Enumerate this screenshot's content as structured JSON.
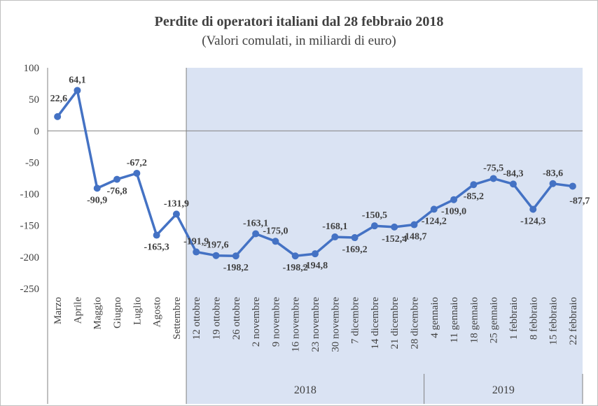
{
  "chart_data": {
    "type": "line",
    "title": "Perdite di operatori italiani  dal 28 febbraio 2018",
    "subtitle": "(Valori comulati, in miliardi di euro)",
    "ylim": [
      -250,
      100
    ],
    "yticks": [
      100,
      50,
      0,
      -50,
      -100,
      -150,
      -200,
      -250
    ],
    "grid": false,
    "line_color": "#4472c4",
    "shade_color": "#dae3f3",
    "categories": [
      "Marzo",
      "Aprile",
      "Maggio",
      "Giugno",
      "Luglio",
      "Agosto",
      "Settembre",
      "12 ottobre",
      "19 ottobre",
      "26 ottobre",
      "2 novembre",
      "9 novembre",
      "16 novembre",
      "23 novembre",
      "30 novembre",
      "7 dicembre",
      "14 dicembre",
      "21 dicembre",
      "28 dicembre",
      "4 gennaio",
      "11 gennaio",
      "18 gennaio",
      "25 gennaio",
      "1 febbraio",
      "8 febbraio",
      "15 febbraio",
      "22 febbraio"
    ],
    "values": [
      22.6,
      64.1,
      -90.9,
      -76.8,
      -67.2,
      -165.3,
      -131.9,
      -191.9,
      -197.6,
      -198.2,
      -163.1,
      -175.0,
      -198.2,
      -194.8,
      -168.1,
      -169.2,
      -150.5,
      -152.4,
      -148.7,
      -124.2,
      -109.0,
      -85.2,
      -75.5,
      -84.3,
      -124.3,
      -83.6,
      -87.7
    ],
    "labels": [
      "22,6",
      "64,1",
      "-90,9",
      "-76,8",
      "-67,2",
      "-165,3",
      "-131,9",
      "-191,9",
      "-197,6",
      "-198,2",
      "-163,1",
      "-175,0",
      "-198,2",
      "-194,8",
      "-168,1",
      "-169,2",
      "-150,5",
      "-152,4",
      "-148,7",
      "-124,2",
      "-109,0",
      "-85,2",
      "-75,5",
      "-84,3",
      "-124,3",
      "-83,6",
      "-87,7"
    ],
    "year_groups": [
      {
        "label": "2018",
        "start": 7,
        "end": 18
      },
      {
        "label": "2019",
        "start": 19,
        "end": 26
      }
    ]
  }
}
